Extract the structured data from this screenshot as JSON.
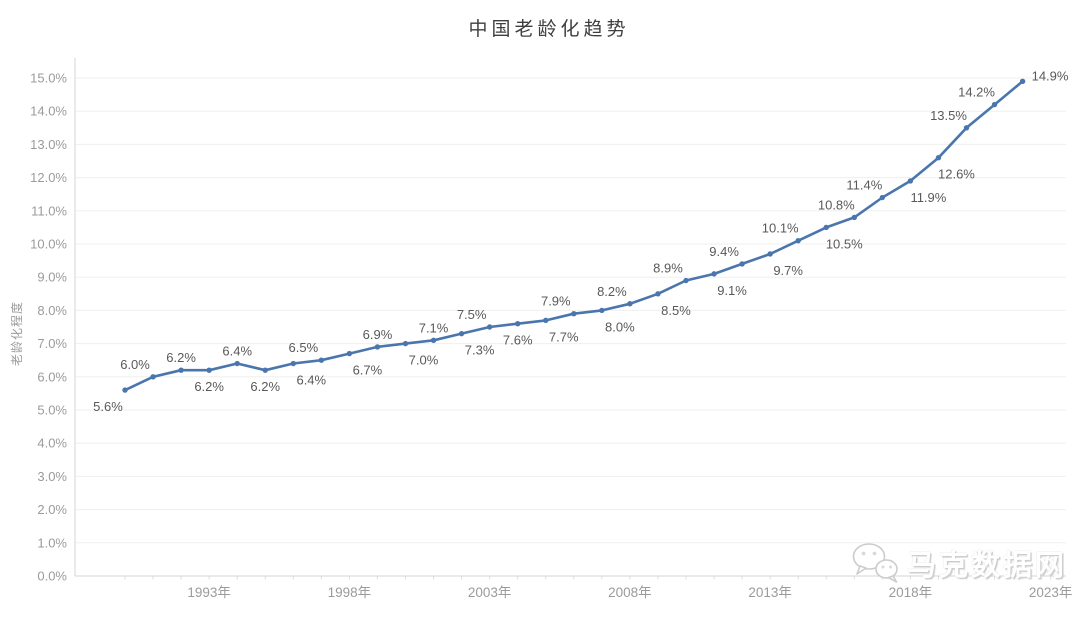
{
  "chart_data": {
    "type": "line",
    "title": "中国老龄化趋势",
    "xlabel": "",
    "ylabel": "老龄化程度",
    "ylim": [
      0,
      15
    ],
    "y_tick_step": 1,
    "grid": true,
    "legend": "none",
    "y_tick_labels": [
      "0.0%",
      "1.0%",
      "2.0%",
      "3.0%",
      "4.0%",
      "5.0%",
      "6.0%",
      "7.0%",
      "8.0%",
      "9.0%",
      "10.0%",
      "11.0%",
      "12.0%",
      "13.0%",
      "14.0%",
      "15.0%"
    ],
    "x_ticks": [
      {
        "year": 1993,
        "label": "1993年"
      },
      {
        "year": 1998,
        "label": "1998年"
      },
      {
        "year": 2003,
        "label": "2003年"
      },
      {
        "year": 2008,
        "label": "2008年"
      },
      {
        "year": 2013,
        "label": "2013年"
      },
      {
        "year": 2018,
        "label": "2018年"
      },
      {
        "year": 2023,
        "label": "2023年"
      }
    ],
    "series": [
      {
        "name": "老龄化程度",
        "points": [
          {
            "year": 1990,
            "value": 5.6,
            "label": "5.6%",
            "label_pos": "below-left"
          },
          {
            "year": 1991,
            "value": 6.0,
            "label": "6.0%",
            "label_pos": "above-left"
          },
          {
            "year": 1992,
            "value": 6.2,
            "label": "6.2%",
            "label_pos": "above"
          },
          {
            "year": 1993,
            "value": 6.2,
            "label": "6.2%",
            "label_pos": "below"
          },
          {
            "year": 1994,
            "value": 6.4,
            "label": "6.4%",
            "label_pos": "above"
          },
          {
            "year": 1995,
            "value": 6.2,
            "label": "6.2%",
            "label_pos": "below"
          },
          {
            "year": 1996,
            "value": 6.4,
            "label": "6.4%",
            "label_pos": "below-right"
          },
          {
            "year": 1997,
            "value": 6.5,
            "label": "6.5%",
            "label_pos": "above-left"
          },
          {
            "year": 1998,
            "value": 6.7,
            "label": "6.7%",
            "label_pos": "below-right"
          },
          {
            "year": 1999,
            "value": 6.9,
            "label": "6.9%",
            "label_pos": "above"
          },
          {
            "year": 2000,
            "value": 7.0,
            "label": "7.0%",
            "label_pos": "below-right"
          },
          {
            "year": 2001,
            "value": 7.1,
            "label": "7.1%",
            "label_pos": "above"
          },
          {
            "year": 2002,
            "value": 7.3,
            "label": "7.3%",
            "label_pos": "below-right"
          },
          {
            "year": 2003,
            "value": 7.5,
            "label": "7.5%",
            "label_pos": "above-left"
          },
          {
            "year": 2004,
            "value": 7.6,
            "label": "7.6%",
            "label_pos": "below"
          },
          {
            "year": 2005,
            "value": 7.7,
            "label": "7.7%",
            "label_pos": "below-right"
          },
          {
            "year": 2006,
            "value": 7.9,
            "label": "7.9%",
            "label_pos": "above-left"
          },
          {
            "year": 2007,
            "value": 8.0,
            "label": "8.0%",
            "label_pos": "below-right"
          },
          {
            "year": 2008,
            "value": 8.2,
            "label": "8.2%",
            "label_pos": "above-left"
          },
          {
            "year": 2009,
            "value": 8.5,
            "label": "8.5%",
            "label_pos": "below-right"
          },
          {
            "year": 2010,
            "value": 8.9,
            "label": "8.9%",
            "label_pos": "above-left"
          },
          {
            "year": 2011,
            "value": 9.1,
            "label": "9.1%",
            "label_pos": "below-right"
          },
          {
            "year": 2012,
            "value": 9.4,
            "label": "9.4%",
            "label_pos": "above-left"
          },
          {
            "year": 2013,
            "value": 9.7,
            "label": "9.7%",
            "label_pos": "below-right"
          },
          {
            "year": 2014,
            "value": 10.1,
            "label": "10.1%",
            "label_pos": "above-left"
          },
          {
            "year": 2015,
            "value": 10.5,
            "label": "10.5%",
            "label_pos": "below-right"
          },
          {
            "year": 2016,
            "value": 10.8,
            "label": "10.8%",
            "label_pos": "above-left"
          },
          {
            "year": 2017,
            "value": 11.4,
            "label": "11.4%",
            "label_pos": "above-left"
          },
          {
            "year": 2018,
            "value": 11.9,
            "label": "11.9%",
            "label_pos": "below-right"
          },
          {
            "year": 2019,
            "value": 12.6,
            "label": "12.6%",
            "label_pos": "below-right"
          },
          {
            "year": 2020,
            "value": 13.5,
            "label": "13.5%",
            "label_pos": "above-left"
          },
          {
            "year": 2021,
            "value": 14.2,
            "label": "14.2%",
            "label_pos": "above-left"
          },
          {
            "year": 2022,
            "value": 14.9,
            "label": "14.9%",
            "label_pos": "right"
          }
        ]
      }
    ],
    "colors": {
      "line": "#4a76ad",
      "marker": "#4a76ad",
      "data_label": "#595959",
      "axis_label": "#9b9b9b",
      "title": "#3f3f3f",
      "gridline": "#efefef",
      "axis_line": "#d4d4d4"
    }
  },
  "watermark": {
    "text": "马克数据网",
    "icon": "wechat-icon"
  }
}
